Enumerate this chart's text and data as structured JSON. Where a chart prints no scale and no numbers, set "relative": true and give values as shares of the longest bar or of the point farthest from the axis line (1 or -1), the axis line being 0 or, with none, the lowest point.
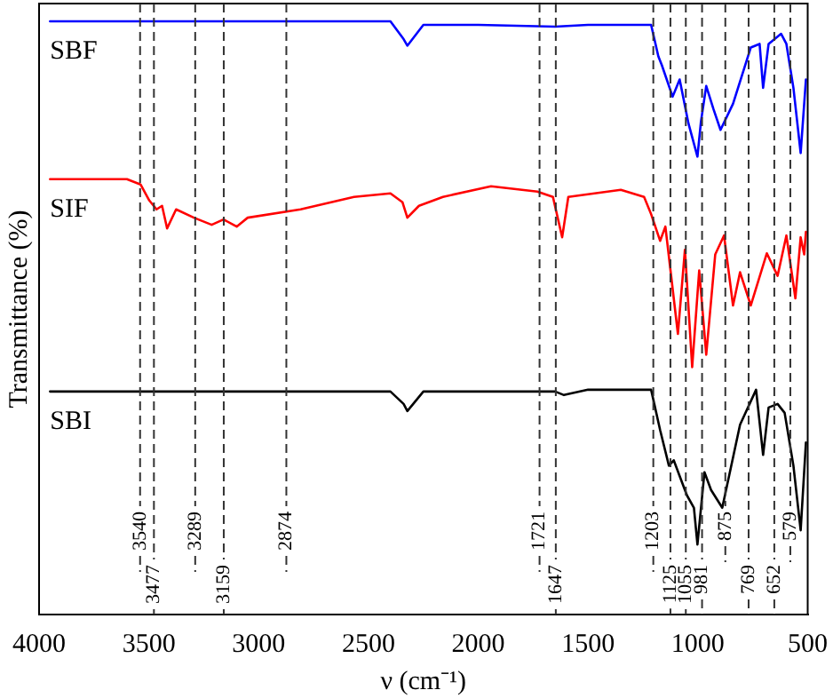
{
  "chart_data": {
    "type": "line",
    "relative": true,
    "xlabel": "ν (cm⁻¹)",
    "ylabel": "Transmittance (%)",
    "xlim": [
      4000,
      500
    ],
    "xticks": [
      4000,
      3500,
      3000,
      2500,
      2000,
      1500,
      1000,
      500
    ],
    "grid": false,
    "legend": false,
    "marker": "none",
    "line_style": "solid",
    "series": [
      {
        "name": "SBF",
        "color": "#0000ff",
        "x": [
          3950,
          3500,
          3000,
          2400,
          2340,
          2323,
          2250,
          2000,
          1650,
          1500,
          1240,
          1213,
          1180,
          1164,
          1115,
          1083,
          1043,
          1002,
          986,
          962,
          929,
          897,
          840,
          759,
          719,
          703,
          678,
          621,
          597,
          565,
          532,
          508
        ],
        "values": [
          1.0,
          1.0,
          1.0,
          1.0,
          0.97,
          0.959,
          0.994,
          0.994,
          0.991,
          0.994,
          0.994,
          0.994,
          0.941,
          0.926,
          0.873,
          0.902,
          0.828,
          0.772,
          0.831,
          0.891,
          0.852,
          0.817,
          0.861,
          0.956,
          0.962,
          0.888,
          0.962,
          0.979,
          0.962,
          0.888,
          0.778,
          0.902
        ]
      },
      {
        "name": "SIF",
        "color": "#ff0000",
        "x": [
          3950,
          3600,
          3538,
          3498,
          3465,
          3440,
          3417,
          3376,
          3295,
          3214,
          3160,
          3100,
          3050,
          2809,
          2566,
          2400,
          2345,
          2323,
          2270,
          2161,
          1942,
          1731,
          1660,
          1618,
          1590,
          1351,
          1245,
          1213,
          1172,
          1148,
          1091,
          1059,
          1026,
          994,
          962,
          921,
          881,
          840,
          808,
          759,
          686,
          637,
          597,
          556,
          532,
          516,
          508
        ],
        "values": [
          0.734,
          0.734,
          0.725,
          0.698,
          0.683,
          0.689,
          0.651,
          0.683,
          0.669,
          0.657,
          0.666,
          0.654,
          0.669,
          0.683,
          0.704,
          0.71,
          0.695,
          0.669,
          0.689,
          0.704,
          0.722,
          0.713,
          0.704,
          0.636,
          0.704,
          0.716,
          0.704,
          0.675,
          0.63,
          0.654,
          0.473,
          0.615,
          0.417,
          0.58,
          0.438,
          0.607,
          0.639,
          0.521,
          0.577,
          0.521,
          0.609,
          0.571,
          0.639,
          0.533,
          0.636,
          0.607,
          0.645
        ]
      },
      {
        "name": "SBI",
        "color": "#000000",
        "x": [
          3950,
          3500,
          3000,
          2400,
          2340,
          2323,
          2250,
          2000,
          1650,
          1610,
          1500,
          1240,
          1213,
          1172,
          1132,
          1110,
          1050,
          1018,
          1002,
          970,
          940,
          889,
          808,
          735,
          703,
          678,
          637,
          605,
          565,
          532,
          508
        ],
        "values": [
          0.376,
          0.376,
          0.376,
          0.376,
          0.355,
          0.343,
          0.376,
          0.376,
          0.376,
          0.37,
          0.379,
          0.379,
          0.379,
          0.311,
          0.251,
          0.26,
          0.201,
          0.18,
          0.118,
          0.24,
          0.21,
          0.18,
          0.32,
          0.379,
          0.269,
          0.349,
          0.355,
          0.34,
          0.251,
          0.142,
          0.29
        ]
      }
    ],
    "ref_lines": [
      {
        "axis": "x",
        "value": 3540,
        "label": "3540",
        "color": "#333333",
        "line_style": "dashed"
      },
      {
        "axis": "x",
        "value": 3477,
        "label": "3477",
        "color": "#333333",
        "line_style": "dashed"
      },
      {
        "axis": "x",
        "value": 3289,
        "label": "3289",
        "color": "#333333",
        "line_style": "dashed"
      },
      {
        "axis": "x",
        "value": 3159,
        "label": "3159",
        "color": "#333333",
        "line_style": "dashed"
      },
      {
        "axis": "x",
        "value": 2874,
        "label": "2874",
        "color": "#333333",
        "line_style": "dashed"
      },
      {
        "axis": "x",
        "value": 1721,
        "label": "1721",
        "color": "#333333",
        "line_style": "dashed"
      },
      {
        "axis": "x",
        "value": 1647,
        "label": "1647",
        "color": "#333333",
        "line_style": "dashed"
      },
      {
        "axis": "x",
        "value": 1203,
        "label": "1203",
        "color": "#333333",
        "line_style": "dashed"
      },
      {
        "axis": "x",
        "value": 1125,
        "label": "1125",
        "color": "#333333",
        "line_style": "dashed"
      },
      {
        "axis": "x",
        "value": 1055,
        "label": "1055",
        "color": "#333333",
        "line_style": "dashed"
      },
      {
        "axis": "x",
        "value": 981,
        "label": "981",
        "color": "#333333",
        "line_style": "dashed"
      },
      {
        "axis": "x",
        "value": 875,
        "label": "875",
        "color": "#333333",
        "line_style": "dashed"
      },
      {
        "axis": "x",
        "value": 769,
        "label": "769",
        "color": "#333333",
        "line_style": "dashed"
      },
      {
        "axis": "x",
        "value": 652,
        "label": "652",
        "color": "#333333",
        "line_style": "dashed"
      },
      {
        "axis": "x",
        "value": 579,
        "label": "579",
        "color": "#333333",
        "line_style": "dashed"
      }
    ]
  }
}
